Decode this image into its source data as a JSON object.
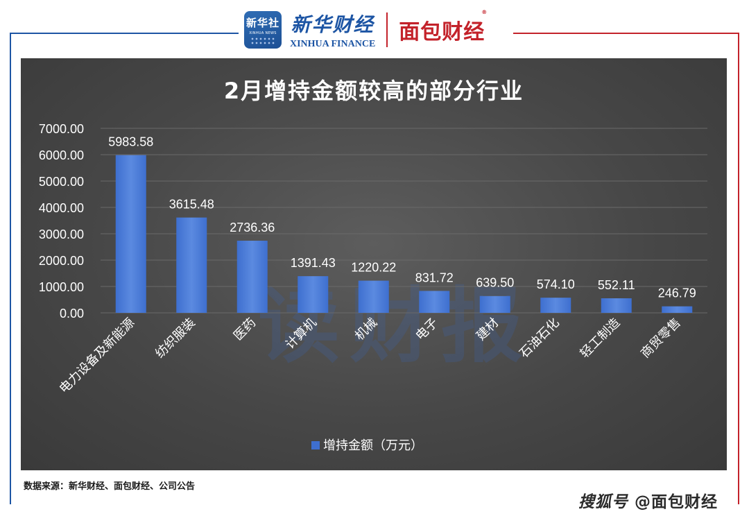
{
  "brand": {
    "xinhua_badge": "新华社",
    "xinhua_badge_en": "XINHUA NEWS",
    "xinhua_finance_cn": "新华财经",
    "xinhua_finance_en": "XINHUA FINANCE",
    "mianbao": "面包财经",
    "registered_mark": "®"
  },
  "watermark": "读财报",
  "source_text": "数据来源：新华财经、面包财经、公司公告",
  "credit": {
    "platform": "搜狐号",
    "handle": "@面包财经"
  },
  "colors": {
    "bar": "#3e6fcf",
    "bar_light": "#5b8ae0",
    "frame_blue": "#1d55a4",
    "frame_red": "#c3222a",
    "chart_bg": "#474747",
    "text": "#ffffff",
    "grid": "#6a6a6a"
  },
  "chart_data": {
    "type": "bar",
    "title": "2月增持金额较高的部分行业",
    "categories": [
      "电力设备及新能源",
      "纺织服装",
      "医药",
      "计算机",
      "机械",
      "电子",
      "建材",
      "石油石化",
      "轻工制造",
      "商贸零售"
    ],
    "series": [
      {
        "name": "增持金额（万元）",
        "values": [
          5983.58,
          3615.48,
          2736.36,
          1391.43,
          1220.22,
          831.72,
          639.5,
          574.1,
          552.11,
          246.79
        ],
        "value_labels": [
          "5983.58",
          "3615.48",
          "2736.36",
          "1391.43",
          "1220.22",
          "831.72",
          "639.50",
          "574.10",
          "552.11",
          "246.79"
        ]
      }
    ],
    "y_ticks": [
      "0.00",
      "1000.00",
      "2000.00",
      "3000.00",
      "4000.00",
      "5000.00",
      "6000.00",
      "7000.00"
    ],
    "ylim": [
      0,
      7000
    ],
    "grid": true,
    "legend": "bottom",
    "xlabel": "",
    "ylabel": ""
  }
}
